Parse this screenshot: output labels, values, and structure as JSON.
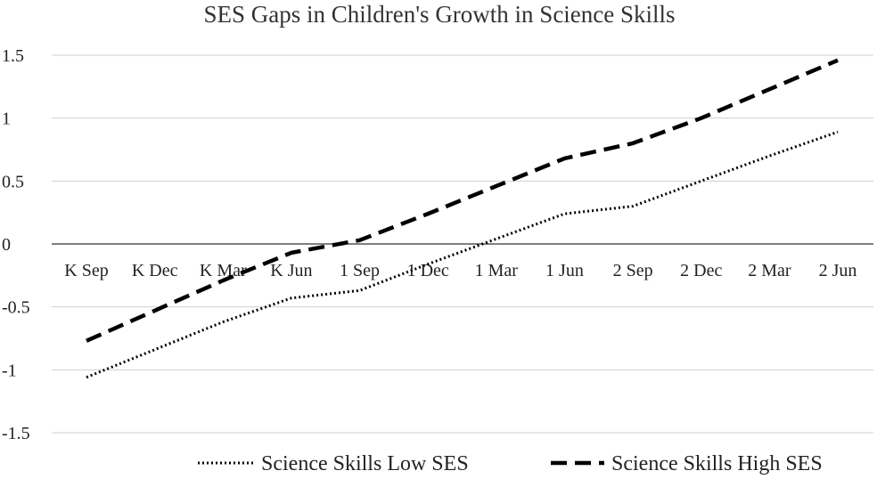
{
  "chart_data": {
    "type": "line",
    "title": "SES Gaps in Children's Growth in Science Skills",
    "xlabel": "",
    "ylabel": "",
    "categories": [
      "K Sep",
      "K Dec",
      "K Mar",
      "K Jun",
      "1 Sep",
      "1 Dec",
      "1 Mar",
      "1 Jun",
      "2 Sep",
      "2 Dec",
      "2 Mar",
      "2 Jun"
    ],
    "ylim": [
      -1.5,
      1.5
    ],
    "yticks": [
      "1.5",
      "1",
      "0.5",
      "0",
      "-0.5",
      "-1",
      "-1.5"
    ],
    "ytick_values": [
      1.5,
      1,
      0.5,
      0,
      -0.5,
      -1,
      -1.5
    ],
    "grid": true,
    "legend_position": "bottom",
    "series": [
      {
        "name": "Science Skills Low SES",
        "style": "dotted",
        "color": "#000000",
        "values": [
          -1.06,
          -0.84,
          -0.62,
          -0.43,
          -0.37,
          -0.16,
          0.04,
          0.24,
          0.3,
          0.5,
          0.7,
          0.89
        ]
      },
      {
        "name": "Science Skills High SES",
        "style": "dashed",
        "color": "#000000",
        "values": [
          -0.77,
          -0.53,
          -0.29,
          -0.07,
          0.03,
          0.24,
          0.46,
          0.68,
          0.8,
          1.0,
          1.23,
          1.46
        ]
      }
    ]
  }
}
